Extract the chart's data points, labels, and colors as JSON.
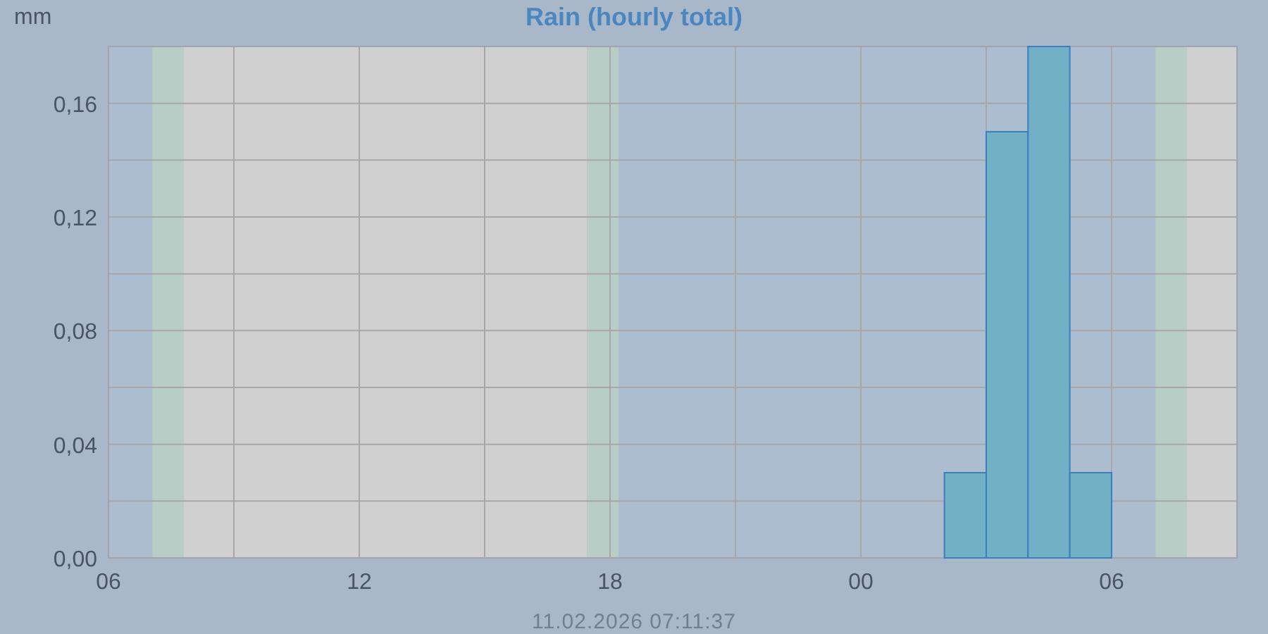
{
  "chart_data": {
    "type": "histogram",
    "title": "Rain (hourly total)",
    "ylabel": "mm",
    "annotations": [
      "11.02.2026 07:11:37"
    ],
    "bins": [
      6,
      7,
      8,
      9,
      10,
      11,
      12,
      13,
      14,
      15,
      16,
      17,
      18,
      19,
      20,
      21,
      22,
      23,
      24,
      25,
      26,
      27,
      28,
      29,
      30,
      31,
      32
    ],
    "values": [
      0,
      0,
      0,
      0,
      0,
      0,
      0,
      0,
      0,
      0,
      0,
      0,
      0,
      0,
      0,
      0,
      0,
      0,
      0,
      0,
      0.03,
      0.15,
      0.18,
      0.03,
      0,
      0
    ],
    "color": "#72b0c6",
    "xlim": [
      6,
      33
    ],
    "xticks": [
      {
        "value": 6,
        "label": "06"
      },
      {
        "value": 9,
        "label": null
      },
      {
        "value": 12,
        "label": "12"
      },
      {
        "value": 15,
        "label": null
      },
      {
        "value": 18,
        "label": "18"
      },
      {
        "value": 21,
        "label": null
      },
      {
        "value": 24,
        "label": "00"
      },
      {
        "value": 27,
        "label": null
      },
      {
        "value": 30,
        "label": "06"
      }
    ],
    "ylim": [
      0,
      0.18
    ],
    "yticks": [
      {
        "value": 0,
        "label": "0,00"
      },
      {
        "value": 0.02,
        "label": null
      },
      {
        "value": 0.04,
        "label": "0,04"
      },
      {
        "value": 0.06,
        "label": null
      },
      {
        "value": 0.08,
        "label": "0,08"
      },
      {
        "value": 0.1,
        "label": null
      },
      {
        "value": 0.12,
        "label": "0,12"
      },
      {
        "value": 0.14,
        "label": null
      },
      {
        "value": 0.16,
        "label": "0,16"
      }
    ],
    "bands": [
      {
        "axis": "x",
        "from": 7.05,
        "to": 7.8,
        "color": "#b8cdc6"
      },
      {
        "axis": "x",
        "from": 7.8,
        "to": 17.45,
        "color": "#d0d0d0"
      },
      {
        "axis": "x",
        "from": 17.45,
        "to": 18.2,
        "color": "#b8cdc6"
      },
      {
        "axis": "x",
        "from": 31.05,
        "to": 31.8,
        "color": "#b8cdc6"
      },
      {
        "axis": "x",
        "from": 31.8,
        "to": 33,
        "color": "#d0d0d0"
      }
    ],
    "grid": true
  }
}
